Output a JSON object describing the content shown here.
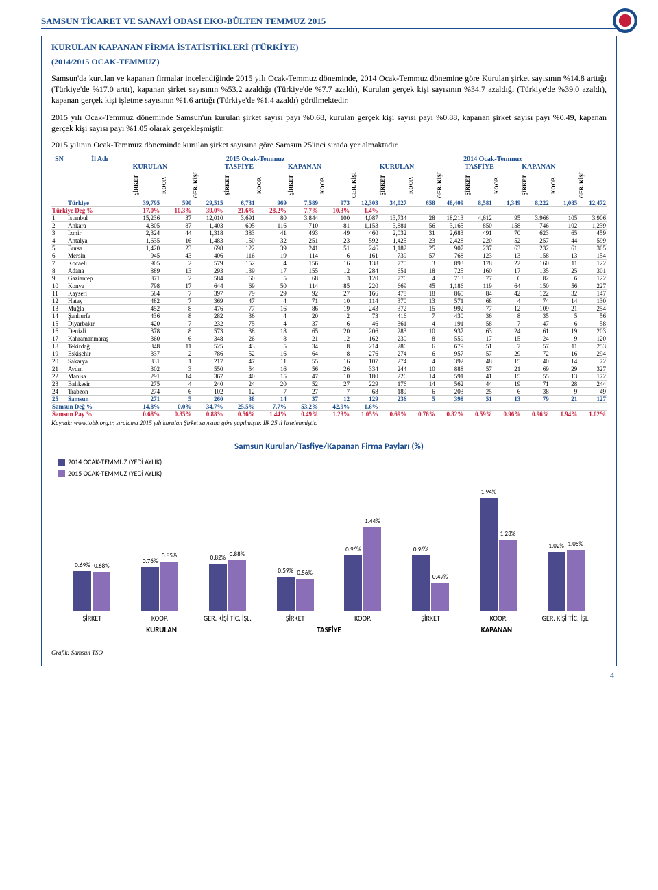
{
  "header": {
    "title": "SAMSUN TİCARET VE SANAYİ ODASI EKO-BÜLTEN TEMMUZ 2015"
  },
  "section": {
    "title": "KURULAN KAPANAN FİRMA İSTATİSTİKLERİ (TÜRKİYE)",
    "subtitle": "(2014/2015 OCAK-TEMMUZ)"
  },
  "paragraphs": {
    "p1": "Samsun'da kurulan ve kapanan firmalar incelendiğinde 2015 yılı Ocak-Temmuz döneminde, 2014 Ocak-Temmuz dönemine göre Kurulan şirket sayısının %14.8 arttığı (Türkiye'de %17.0 arttı), kapanan şirket sayısının %53.2 azaldığı (Türkiye'de %7.7 azaldı), Kurulan gerçek kişi sayısının %34.7 azaldığı (Türkiye'de %39.0 azaldı), kapanan gerçek kişi işletme sayısının %1.6 arttığı (Türkiye'de %1.4 azaldı) görülmektedir.",
    "p2": "2015 yılı Ocak-Temmuz döneminde Samsun'un kurulan şirket sayısı payı %0.68, kurulan gerçek kişi sayısı payı %0.88, kapanan şirket sayısı payı %0.49, kapanan gerçek kişi sayısı payı %1.05 olarak gerçekleşmiştir.",
    "p3": "2015 yılının Ocak-Temmuz döneminde kurulan şirket sayısına göre Samsun 25'inci sırada yer almaktadır."
  },
  "table": {
    "sn": "SN",
    "il": "İl Adı",
    "y2015": "2015 Ocak-Temmuz",
    "y2014": "2014 Ocak-Temmuz",
    "kurulan": "KURULAN",
    "tasfiye": "TASFİYE",
    "kapanan": "KAPANAN",
    "cols": [
      "ŞİRKET",
      "KOOP.",
      "GER. KİŞİ",
      "ŞİRKET",
      "KOOP.",
      "ŞİRKET",
      "KOOP.",
      "GER. KİŞİ",
      "ŞİRKET",
      "KOOP.",
      "GER. KİŞİ",
      "ŞİRKET",
      "KOOP.",
      "ŞİRKET",
      "KOOP.",
      "GER. KİŞİ"
    ],
    "turkey_label": "Türkiye",
    "turkey": [
      "39,795",
      "590",
      "29,515",
      "6,731",
      "969",
      "7,589",
      "973",
      "12,303",
      "34,027",
      "658",
      "48,409",
      "8,581",
      "1,349",
      "8,222",
      "1,085",
      "12,472"
    ],
    "turkey_deg_label": "Türkiye Değ %",
    "turkey_deg": [
      "17.0%",
      "-10.3%",
      "-39.0%",
      "-21.6%",
      "-28.2%",
      "-7.7%",
      "-10.3%",
      "-1.4%",
      "",
      "",
      "",
      "",
      "",
      "",
      "",
      ""
    ],
    "rows": [
      [
        "1",
        "İstanbul",
        "15,236",
        "37",
        "12,010",
        "3,691",
        "80",
        "3,844",
        "100",
        "4,087",
        "13,734",
        "28",
        "18,213",
        "4,612",
        "95",
        "3,966",
        "105",
        "3,906"
      ],
      [
        "2",
        "Ankara",
        "4,805",
        "87",
        "1,403",
        "605",
        "116",
        "710",
        "81",
        "1,153",
        "3,881",
        "56",
        "3,165",
        "850",
        "158",
        "746",
        "102",
        "1,239"
      ],
      [
        "3",
        "İzmir",
        "2,324",
        "44",
        "1,318",
        "383",
        "41",
        "493",
        "49",
        "460",
        "2,032",
        "31",
        "2,683",
        "491",
        "70",
        "623",
        "65",
        "459"
      ],
      [
        "4",
        "Antalya",
        "1,635",
        "16",
        "1,483",
        "150",
        "32",
        "251",
        "23",
        "592",
        "1,425",
        "23",
        "2,428",
        "220",
        "52",
        "257",
        "44",
        "599"
      ],
      [
        "5",
        "Bursa",
        "1,420",
        "23",
        "698",
        "122",
        "39",
        "241",
        "51",
        "246",
        "1,182",
        "25",
        "907",
        "237",
        "63",
        "232",
        "61",
        "305"
      ],
      [
        "6",
        "Mersin",
        "945",
        "43",
        "406",
        "116",
        "19",
        "114",
        "6",
        "161",
        "739",
        "57",
        "768",
        "123",
        "13",
        "158",
        "13",
        "154"
      ],
      [
        "7",
        "Kocaeli",
        "905",
        "2",
        "579",
        "152",
        "4",
        "156",
        "16",
        "138",
        "770",
        "3",
        "893",
        "178",
        "22",
        "160",
        "11",
        "122"
      ],
      [
        "8",
        "Adana",
        "889",
        "13",
        "293",
        "139",
        "17",
        "155",
        "12",
        "284",
        "651",
        "18",
        "725",
        "160",
        "17",
        "135",
        "25",
        "301"
      ],
      [
        "9",
        "Gaziantep",
        "871",
        "2",
        "584",
        "60",
        "5",
        "68",
        "3",
        "120",
        "776",
        "4",
        "713",
        "77",
        "6",
        "82",
        "6",
        "122"
      ],
      [
        "10",
        "Konya",
        "798",
        "17",
        "644",
        "69",
        "50",
        "114",
        "85",
        "220",
        "669",
        "45",
        "1,186",
        "119",
        "64",
        "150",
        "56",
        "227"
      ],
      [
        "11",
        "Kayseri",
        "584",
        "7",
        "397",
        "79",
        "29",
        "92",
        "27",
        "166",
        "478",
        "18",
        "865",
        "84",
        "42",
        "122",
        "32",
        "147"
      ],
      [
        "12",
        "Hatay",
        "482",
        "7",
        "369",
        "47",
        "4",
        "71",
        "10",
        "114",
        "370",
        "13",
        "571",
        "68",
        "4",
        "74",
        "14",
        "130"
      ],
      [
        "13",
        "Muğla",
        "452",
        "8",
        "476",
        "77",
        "16",
        "86",
        "19",
        "243",
        "372",
        "15",
        "992",
        "77",
        "12",
        "109",
        "21",
        "254"
      ],
      [
        "14",
        "Şanlıurfa",
        "436",
        "8",
        "282",
        "36",
        "4",
        "20",
        "2",
        "73",
        "416",
        "7",
        "430",
        "36",
        "8",
        "35",
        "5",
        "56"
      ],
      [
        "15",
        "Diyarbakır",
        "420",
        "7",
        "232",
        "75",
        "4",
        "37",
        "6",
        "46",
        "361",
        "4",
        "191",
        "58",
        "7",
        "47",
        "6",
        "58"
      ],
      [
        "16",
        "Denizli",
        "378",
        "8",
        "573",
        "38",
        "18",
        "65",
        "20",
        "206",
        "283",
        "10",
        "937",
        "63",
        "24",
        "61",
        "19",
        "203"
      ],
      [
        "17",
        "Kahramanmaraş",
        "360",
        "6",
        "348",
        "26",
        "8",
        "21",
        "12",
        "162",
        "230",
        "8",
        "559",
        "17",
        "15",
        "24",
        "9",
        "120"
      ],
      [
        "18",
        "Tekirdağ",
        "348",
        "11",
        "525",
        "43",
        "5",
        "34",
        "8",
        "214",
        "286",
        "6",
        "679",
        "51",
        "7",
        "57",
        "11",
        "253"
      ],
      [
        "19",
        "Eskişehir",
        "337",
        "2",
        "786",
        "52",
        "16",
        "64",
        "8",
        "276",
        "274",
        "6",
        "957",
        "57",
        "29",
        "72",
        "16",
        "294"
      ],
      [
        "20",
        "Sakarya",
        "331",
        "1",
        "217",
        "47",
        "11",
        "55",
        "16",
        "107",
        "274",
        "4",
        "392",
        "48",
        "15",
        "40",
        "14",
        "72"
      ],
      [
        "21",
        "Aydın",
        "302",
        "3",
        "550",
        "54",
        "16",
        "56",
        "26",
        "334",
        "244",
        "10",
        "888",
        "57",
        "21",
        "69",
        "29",
        "327"
      ],
      [
        "22",
        "Manisa",
        "291",
        "14",
        "367",
        "40",
        "15",
        "47",
        "10",
        "180",
        "226",
        "14",
        "591",
        "41",
        "15",
        "55",
        "13",
        "172"
      ],
      [
        "23",
        "Balıkesir",
        "275",
        "4",
        "240",
        "24",
        "20",
        "52",
        "27",
        "229",
        "176",
        "14",
        "562",
        "44",
        "19",
        "71",
        "28",
        "244"
      ],
      [
        "24",
        "Trabzon",
        "274",
        "6",
        "102",
        "12",
        "7",
        "27",
        "7",
        "68",
        "189",
        "6",
        "203",
        "25",
        "6",
        "38",
        "9",
        "49"
      ],
      [
        "25",
        "Samsun",
        "271",
        "5",
        "260",
        "38",
        "14",
        "37",
        "12",
        "129",
        "236",
        "5",
        "398",
        "51",
        "13",
        "79",
        "21",
        "127"
      ]
    ],
    "samsun_deg_label": "Samsun Değ %",
    "samsun_deg": [
      "14.8%",
      "0.0%",
      "-34.7%",
      "-25.5%",
      "7.7%",
      "-53.2%",
      "-42.9%",
      "1.6%",
      "",
      "",
      "",
      "",
      "",
      "",
      "",
      ""
    ],
    "samsun_pay_label": "Samsun Pay %",
    "samsun_pay": [
      "0.68%",
      "0.85%",
      "0.88%",
      "0.56%",
      "1.44%",
      "0.49%",
      "1.23%",
      "1.05%",
      "0.69%",
      "0.76%",
      "0.82%",
      "0.59%",
      "0.96%",
      "0.96%",
      "1.94%",
      "1.02%"
    ],
    "source": "Kaynak: www.tobb.org.tr, sıralama 2015 yılı kurulan Şirket sayısına göre yapılmıştır. İlk 25 il listelenmiştir."
  },
  "chart": {
    "title": "Samsun Kurulan/Tasfiye/Kapanan Firma Payları (%)",
    "legend": {
      "a": "2014 OCAK-TEMMUZ (YEDİ AYLIK)",
      "b": "2015 OCAK-TEMMUZ (YEDİ AYLIK)"
    },
    "color_a": "#4a4a8c",
    "color_b": "#8a6fb8",
    "ymax": 2.0,
    "groups": [
      {
        "label": "ŞİRKET",
        "a": 0.69,
        "a_label": "0.69%",
        "b": 0.68,
        "b_label": "0.68%"
      },
      {
        "label": "KOOP.",
        "a": 0.76,
        "a_label": "0.76%",
        "b": 0.85,
        "b_label": "0.85%"
      },
      {
        "label": "GER. KİŞİ TİC. İŞL.",
        "a": 0.82,
        "a_label": "0.82%",
        "b": 0.88,
        "b_label": "0.88%"
      },
      {
        "label": "ŞİRKET",
        "a": 0.59,
        "a_label": "0.59%",
        "b": 0.56,
        "b_label": "0.56%"
      },
      {
        "label": "KOOP.",
        "a": 0.96,
        "a_label": "0.96%",
        "b": 1.44,
        "b_label": "1.44%"
      },
      {
        "label": "ŞİRKET",
        "a": 0.96,
        "a_label": "0.96%",
        "b": 0.49,
        "b_label": "0.49%"
      },
      {
        "label": "KOOP.",
        "a": 1.94,
        "a_label": "1.94%",
        "b": 1.23,
        "b_label": "1.23%"
      },
      {
        "label": "GER. KİŞİ TİC. İŞL.",
        "a": 1.02,
        "a_label": "1.02%",
        "b": 1.05,
        "b_label": "1.05%"
      }
    ],
    "sections": [
      {
        "label": "KURULAN",
        "span": 3
      },
      {
        "label": "TASFİYE",
        "span": 2
      },
      {
        "label": "KAPANAN",
        "span": 3
      }
    ],
    "source": "Grafik: Samsun TSO"
  },
  "page_num": "4"
}
